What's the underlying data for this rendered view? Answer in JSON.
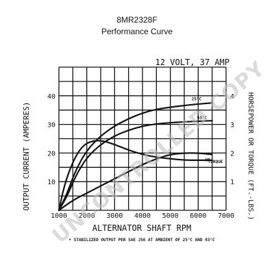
{
  "header": {
    "model": "8MR2328F",
    "subtitle": "Performance Curve"
  },
  "chart_data": {
    "type": "line",
    "title": "12 VOLT, 37 AMP",
    "xlabel": "ALTERNATOR SHAFT RPM",
    "ylabel": "OUTPUT CURRENT (AMPERES)",
    "y2label": "HORSEPOWER OR TORQUE (FT.-LBS.)",
    "xlim": [
      1000,
      7000
    ],
    "ylim": [
      0,
      50
    ],
    "y2lim": [
      0,
      5
    ],
    "grid": true,
    "x_ticks": [
      "1000",
      "2000",
      "3000",
      "4000",
      "5000",
      "6000",
      "7000"
    ],
    "y_ticks": [
      "10",
      "20",
      "30",
      "40"
    ],
    "y2_ticks": [
      "1",
      "2",
      "3",
      "4"
    ],
    "footnote": "• STABILIZED OUTPUT PER SAE J56 AT AMBIENT OF 25°C AND 93°C",
    "watermark": "UNCONTROLLED COPY",
    "series": [
      {
        "name": "25°C",
        "axis": "left",
        "x": [
          1000,
          1300,
          1600,
          2000,
          2500,
          3000,
          3500,
          4000,
          4500,
          5000,
          5500,
          6000,
          6500
        ],
        "y": [
          0,
          6,
          14,
          21,
          26,
          29.5,
          32,
          34,
          35.3,
          36,
          36.6,
          37.1,
          37.5
        ]
      },
      {
        "name": "93°C",
        "axis": "left",
        "x": [
          1000,
          1300,
          1600,
          2000,
          2500,
          3000,
          3500,
          4000,
          4500,
          5000,
          5500,
          6000,
          6500
        ],
        "y": [
          0,
          5,
          12,
          18.5,
          23,
          26,
          28,
          29.4,
          30.2,
          30.6,
          30.9,
          31.1,
          31.3
        ]
      },
      {
        "name": "TORQUE",
        "axis": "right",
        "x": [
          1000,
          1200,
          1500,
          1800,
          2100,
          2500,
          3000,
          3500,
          4000,
          4500,
          5000,
          5500,
          6000,
          6500
        ],
        "y": [
          0,
          0.9,
          1.7,
          2.2,
          2.4,
          2.45,
          2.3,
          2.1,
          1.95,
          1.85,
          1.8,
          1.75,
          1.75,
          1.75
        ]
      },
      {
        "name": "HP",
        "axis": "right",
        "x": [
          1000,
          1500,
          2000,
          2500,
          3000,
          3500,
          4000,
          4500,
          5000,
          5500,
          6000,
          6500
        ],
        "y": [
          0,
          0.35,
          0.6,
          0.85,
          1.1,
          1.35,
          1.6,
          1.8,
          1.95,
          2.0,
          2.0,
          1.95
        ]
      }
    ]
  }
}
